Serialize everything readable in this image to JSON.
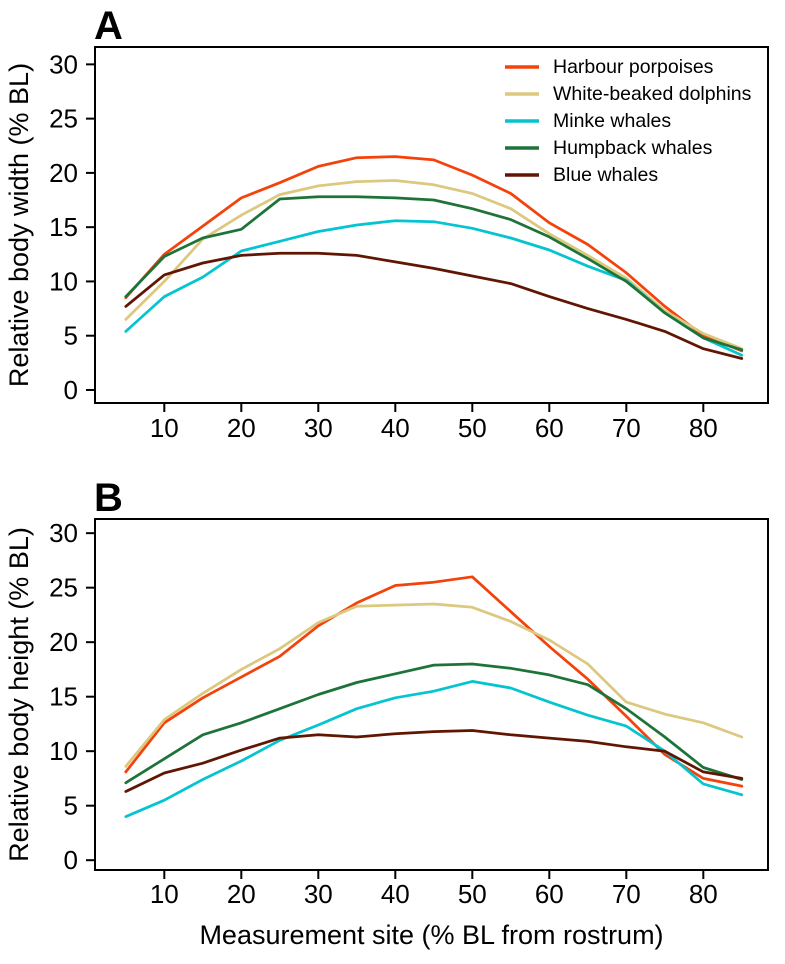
{
  "figure": {
    "panel_a_letter": "A",
    "panel_b_letter": "B",
    "text_color": "#000000",
    "background": "#ffffff"
  },
  "chart_data": [
    {
      "type": "line",
      "panel_label": "A",
      "xlabel": "",
      "ylabel": "Relative body width (% BL)",
      "x_ticks": [
        10,
        20,
        30,
        40,
        50,
        60,
        70,
        80
      ],
      "y_ticks": [
        0,
        5,
        10,
        15,
        20,
        25,
        30
      ],
      "xlim": [
        1.0,
        88.4
      ],
      "ylim": [
        -1.2,
        31.6
      ],
      "grid": false,
      "legend_position": "top-right",
      "x": [
        5,
        10,
        15,
        20,
        25,
        30,
        35,
        40,
        45,
        50,
        55,
        60,
        65,
        70,
        75,
        80,
        85
      ],
      "series": [
        {
          "name": "Harbour porpoises",
          "color": "#f4420b",
          "values": [
            8.5,
            12.5,
            15.1,
            17.7,
            19.1,
            20.6,
            21.4,
            21.5,
            21.2,
            19.8,
            18.1,
            15.4,
            13.4,
            10.8,
            7.7,
            5.0,
            3.6
          ]
        },
        {
          "name": "White-beaked dolphins",
          "color": "#dcc87e",
          "values": [
            6.5,
            10.0,
            13.9,
            16.1,
            18.0,
            18.8,
            19.2,
            19.3,
            18.9,
            18.1,
            16.7,
            14.4,
            12.4,
            10.3,
            7.3,
            5.2,
            3.8
          ]
        },
        {
          "name": "Minke whales",
          "color": "#04c4d0",
          "values": [
            5.4,
            8.6,
            10.4,
            12.8,
            13.7,
            14.6,
            15.2,
            15.6,
            15.5,
            14.9,
            14.0,
            12.9,
            11.4,
            10.1,
            7.1,
            4.8,
            3.2
          ]
        },
        {
          "name": "Humpback whales",
          "color": "#1e7438",
          "values": [
            8.6,
            12.3,
            14.0,
            14.8,
            17.6,
            17.8,
            17.8,
            17.7,
            17.5,
            16.7,
            15.7,
            14.1,
            12.1,
            10.0,
            7.1,
            4.8,
            3.7
          ]
        },
        {
          "name": "Blue whales",
          "color": "#601603",
          "values": [
            7.7,
            10.6,
            11.7,
            12.4,
            12.6,
            12.6,
            12.4,
            11.8,
            11.2,
            10.5,
            9.8,
            8.6,
            7.5,
            6.5,
            5.4,
            3.8,
            2.9
          ]
        }
      ]
    },
    {
      "type": "line",
      "panel_label": "B",
      "xlabel": "Measurement site (% BL from rostrum)",
      "ylabel": "Relative body height (% BL)",
      "x_ticks": [
        10,
        20,
        30,
        40,
        50,
        60,
        70,
        80
      ],
      "y_ticks": [
        0,
        5,
        10,
        15,
        20,
        25,
        30
      ],
      "xlim": [
        1.0,
        88.4
      ],
      "ylim": [
        -0.9,
        31.3
      ],
      "grid": false,
      "legend_position": "none",
      "x": [
        5,
        10,
        15,
        20,
        25,
        30,
        35,
        40,
        45,
        50,
        55,
        60,
        65,
        70,
        75,
        80,
        85
      ],
      "series": [
        {
          "name": "Harbour porpoises",
          "color": "#f4420b",
          "values": [
            8.1,
            12.6,
            14.9,
            16.8,
            18.7,
            21.5,
            23.6,
            25.2,
            25.5,
            26.0,
            22.8,
            19.6,
            16.6,
            13.2,
            9.7,
            7.5,
            6.8
          ]
        },
        {
          "name": "White-beaked dolphins",
          "color": "#dcc87e",
          "values": [
            8.6,
            12.9,
            15.3,
            17.5,
            19.4,
            21.8,
            23.3,
            23.4,
            23.5,
            23.2,
            21.9,
            20.2,
            18.0,
            14.5,
            13.4,
            12.6,
            11.3
          ]
        },
        {
          "name": "Minke whales",
          "color": "#04c4d0",
          "values": [
            4.0,
            5.5,
            7.4,
            9.1,
            11.0,
            12.4,
            13.9,
            14.9,
            15.5,
            16.4,
            15.8,
            14.5,
            13.3,
            12.3,
            10.0,
            7.0,
            6.0
          ]
        },
        {
          "name": "Humpback whales",
          "color": "#1e7438",
          "values": [
            7.1,
            9.3,
            11.5,
            12.6,
            13.9,
            15.2,
            16.3,
            17.1,
            17.9,
            18.0,
            17.6,
            17.0,
            16.1,
            13.9,
            11.3,
            8.5,
            7.4
          ]
        },
        {
          "name": "Blue whales",
          "color": "#601603",
          "values": [
            6.3,
            8.0,
            8.9,
            10.1,
            11.2,
            11.5,
            11.3,
            11.6,
            11.8,
            11.9,
            11.5,
            11.2,
            10.9,
            10.4,
            10.0,
            8.1,
            7.5
          ]
        }
      ]
    }
  ]
}
